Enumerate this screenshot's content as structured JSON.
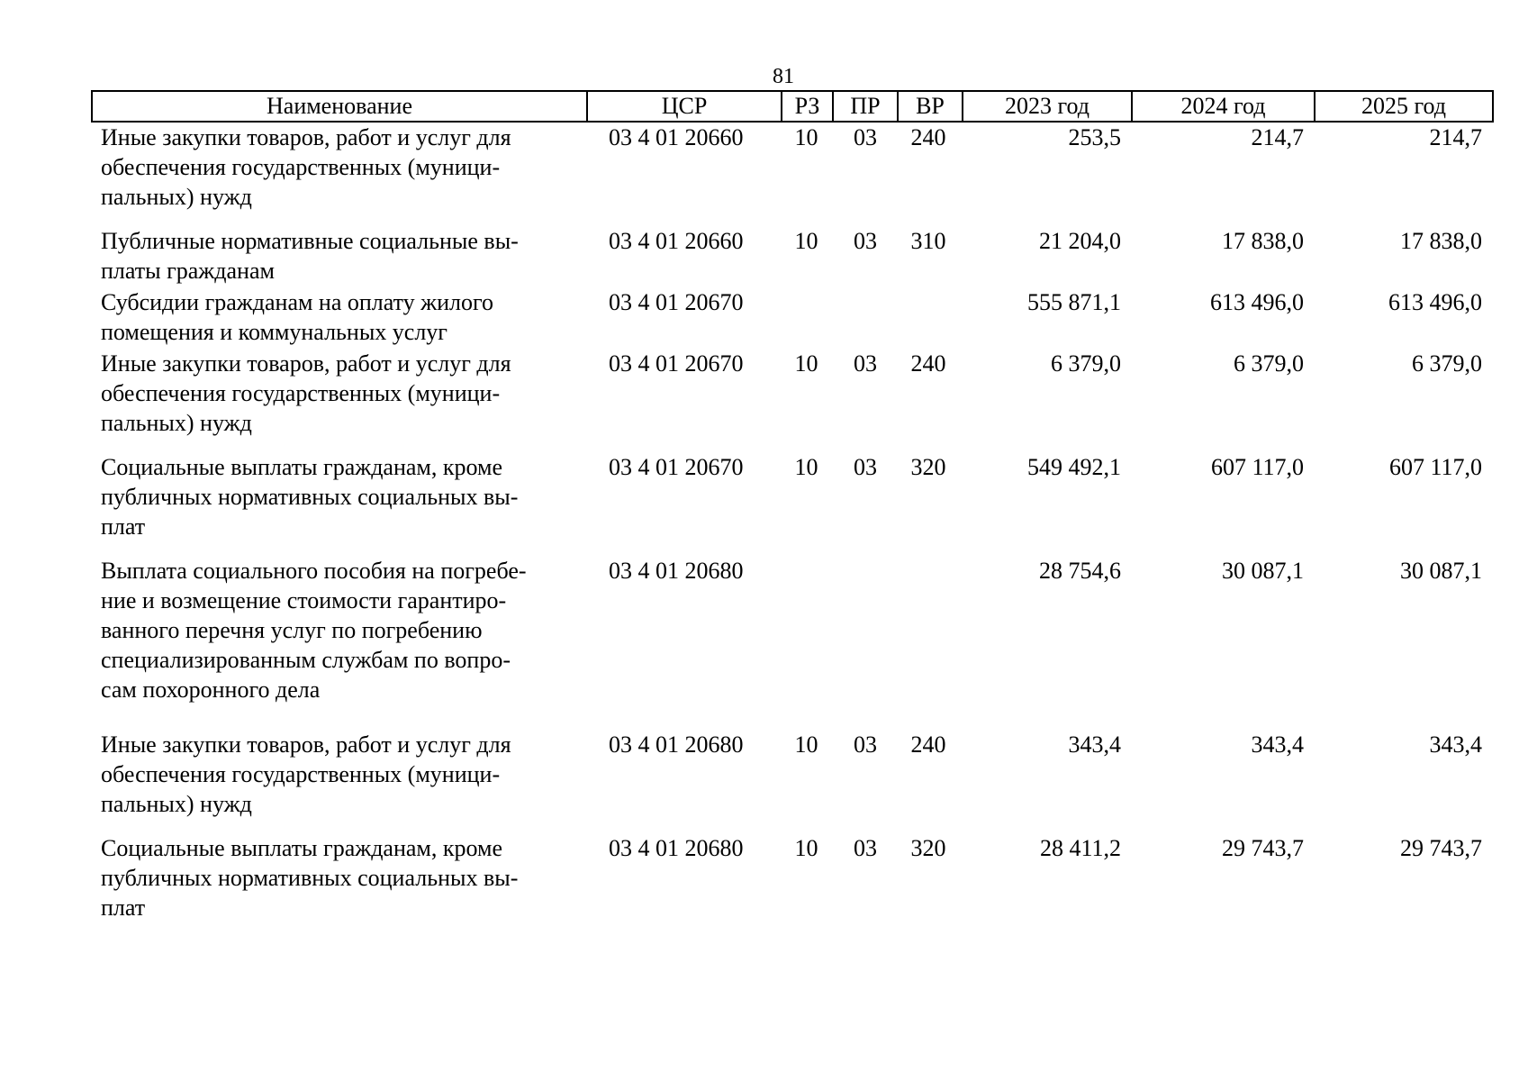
{
  "page_number": "81",
  "table": {
    "headers": {
      "name": "Наименование",
      "csr": "ЦСР",
      "rz": "РЗ",
      "pr": "ПР",
      "vr": "ВР",
      "y2023": "2023 год",
      "y2024": "2024 год",
      "y2025": "2025 год"
    },
    "rows": [
      {
        "name_lines": [
          "Иные закупки товаров, работ и услуг для",
          "обеспечения государственных (муници-",
          "пальных) нужд"
        ],
        "csr": "03 4 01 20660",
        "rz": "10",
        "pr": "03",
        "vr": "240",
        "y2023": "253,5",
        "y2024": "214,7",
        "y2025": "214,7"
      },
      {
        "name_lines": [
          "Публичные нормативные социальные вы-",
          "платы гражданам"
        ],
        "csr": "03 4 01 20660",
        "rz": "10",
        "pr": "03",
        "vr": "310",
        "y2023": "21 204,0",
        "y2024": "17 838,0",
        "y2025": "17 838,0"
      },
      {
        "name_lines": [
          "Субсидии гражданам на оплату жилого",
          "помещения и коммунальных услуг"
        ],
        "csr": "03 4 01 20670",
        "rz": "",
        "pr": "",
        "vr": "",
        "y2023": "555 871,1",
        "y2024": "613 496,0",
        "y2025": "613 496,0"
      },
      {
        "name_lines": [
          "Иные закупки товаров, работ и услуг для",
          "обеспечения государственных (муници-",
          "пальных) нужд"
        ],
        "csr": "03 4 01 20670",
        "rz": "10",
        "pr": "03",
        "vr": "240",
        "y2023": "6 379,0",
        "y2024": "6 379,0",
        "y2025": "6 379,0"
      },
      {
        "name_lines": [
          "Социальные выплаты гражданам, кроме",
          "публичных нормативных социальных вы-",
          "плат"
        ],
        "csr": "03 4 01 20670",
        "rz": "10",
        "pr": "03",
        "vr": "320",
        "y2023": "549 492,1",
        "y2024": "607 117,0",
        "y2025": "607 117,0"
      },
      {
        "name_lines": [
          "Выплата социального пособия на погребе-",
          "ние и возмещение стоимости гарантиро-",
          "ванного перечня услуг по погребению",
          "специализированным службам по вопро-",
          "сам похоронного дела"
        ],
        "csr": "03 4 01 20680",
        "rz": "",
        "pr": "",
        "vr": "",
        "y2023": "28 754,6",
        "y2024": "30 087,1",
        "y2025": "30 087,1"
      },
      {
        "name_lines": [
          "Иные закупки товаров, работ и услуг для",
          "обеспечения государственных (муници-",
          "пальных) нужд"
        ],
        "csr": "03 4 01 20680",
        "rz": "10",
        "pr": "03",
        "vr": "240",
        "y2023": "343,4",
        "y2024": "343,4",
        "y2025": "343,4"
      },
      {
        "name_lines": [
          "Социальные выплаты гражданам, кроме",
          "публичных нормативных социальных вы-",
          "плат"
        ],
        "csr": "03 4 01 20680",
        "rz": "10",
        "pr": "03",
        "vr": "320",
        "y2023": "28 411,2",
        "y2024": "29 743,7",
        "y2025": "29 743,7"
      }
    ]
  }
}
